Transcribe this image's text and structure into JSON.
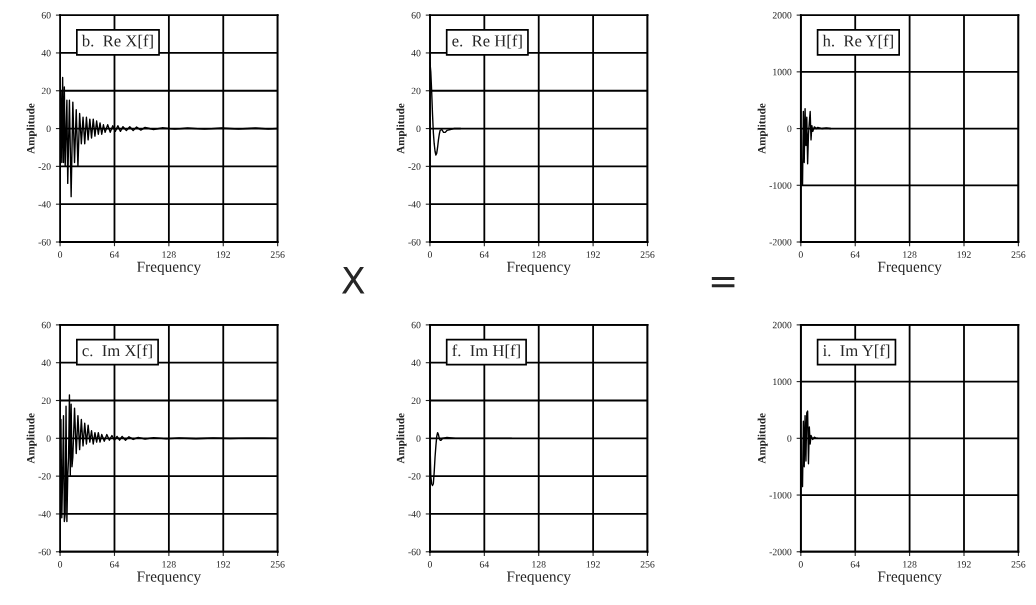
{
  "chart_data": [
    {
      "type": "line",
      "title": "b.  Re X[f]",
      "xlabel": "Frequency",
      "ylabel": "Amplitude",
      "xlim": [
        0,
        256
      ],
      "xticks": [
        0,
        64,
        128,
        192,
        256
      ],
      "ylim": [
        -60,
        60
      ],
      "yticks": [
        -60,
        -40,
        -20,
        0,
        20,
        40,
        60
      ],
      "grid": true,
      "annotations": [
        "X"
      ],
      "series": [
        {
          "color": "#000000",
          "x": [
            0,
            1,
            2,
            3,
            4,
            5,
            6,
            8,
            9,
            11,
            13,
            15,
            17,
            19,
            21,
            23,
            25,
            27,
            29,
            31,
            33,
            35,
            37,
            39,
            41,
            43,
            45,
            47,
            49,
            51,
            53,
            56,
            59,
            62,
            65,
            68,
            71,
            74,
            78,
            82,
            86,
            90,
            95,
            100,
            110,
            120,
            135,
            150,
            170,
            190,
            210,
            230,
            245,
            255
          ],
          "values": [
            0,
            20,
            -18,
            27,
            -18,
            22,
            -20,
            15,
            -29,
            15,
            -36,
            14,
            -18,
            10,
            -20,
            8,
            -8,
            6,
            -8,
            6,
            -6,
            5,
            -5,
            5,
            -4,
            4,
            -3,
            3,
            -3,
            2,
            -2,
            2,
            -2,
            1.5,
            -1.5,
            1.5,
            -1.5,
            1,
            -1,
            1,
            -1,
            0.8,
            -0.8,
            0.6,
            -0.5,
            0.4,
            -0.3,
            0.3,
            -0.3,
            0.3,
            -0.2,
            0.3,
            -0.2,
            0
          ]
        }
      ]
    },
    {
      "type": "line",
      "title": "e.  Re H[f]",
      "xlabel": "Frequency",
      "ylabel": "Amplitude",
      "xlim": [
        0,
        256
      ],
      "xticks": [
        0,
        64,
        128,
        192,
        256
      ],
      "ylim": [
        -60,
        60
      ],
      "yticks": [
        -60,
        -40,
        -20,
        0,
        20,
        40,
        60
      ],
      "grid": true,
      "annotations": [
        "="
      ],
      "series": [
        {
          "color": "#000000",
          "x": [
            0,
            1,
            2,
            3,
            4,
            5,
            6,
            7,
            8,
            9,
            10,
            11,
            12,
            14,
            16,
            18,
            20,
            24,
            28,
            32,
            36
          ],
          "values": [
            35,
            30,
            20,
            8,
            -2,
            -8,
            -12,
            -14,
            -13,
            -10,
            -6,
            -3,
            -1,
            -0.5,
            -2,
            -2,
            -1,
            -0.5,
            0,
            0,
            0
          ]
        }
      ]
    },
    {
      "type": "line",
      "title": "h.  Re Y[f]",
      "xlabel": "Frequency",
      "ylabel": "Amplitude",
      "xlim": [
        0,
        256
      ],
      "xticks": [
        0,
        64,
        128,
        192,
        256
      ],
      "ylim": [
        -2000,
        2000
      ],
      "yticks": [
        -2000,
        -1000,
        0,
        1000,
        2000
      ],
      "grid": true,
      "series": [
        {
          "color": "#000000",
          "x": [
            0,
            1,
            2,
            3,
            4,
            5,
            6,
            7,
            8,
            9,
            10,
            11,
            12,
            13,
            14,
            16,
            18,
            20,
            25,
            30,
            35
          ],
          "values": [
            0,
            -900,
            -1000,
            300,
            -600,
            350,
            -300,
            200,
            -620,
            -100,
            100,
            300,
            -200,
            50,
            -50,
            30,
            0,
            20,
            0,
            10,
            0
          ]
        }
      ]
    },
    {
      "type": "line",
      "title": "c.  Im X[f]",
      "xlabel": "Frequency",
      "ylabel": "Amplitude",
      "xlim": [
        0,
        256
      ],
      "xticks": [
        0,
        64,
        128,
        192,
        256
      ],
      "ylim": [
        -60,
        60
      ],
      "yticks": [
        -60,
        -40,
        -20,
        0,
        20,
        40,
        60
      ],
      "grid": true,
      "series": [
        {
          "color": "#000000",
          "x": [
            0,
            1,
            2,
            3,
            4,
            5,
            6,
            7,
            8,
            9,
            10,
            11,
            12,
            13,
            14,
            15,
            17,
            19,
            21,
            23,
            25,
            27,
            29,
            31,
            33,
            35,
            37,
            39,
            41,
            43,
            45,
            47,
            49,
            52,
            55,
            58,
            61,
            64,
            67,
            70,
            73,
            77,
            81,
            86,
            92,
            100,
            110,
            125,
            140,
            160,
            180,
            200,
            220,
            240,
            255
          ],
          "values": [
            0,
            10,
            -42,
            -20,
            12,
            -44,
            -40,
            17,
            -44,
            -20,
            -10,
            23,
            -20,
            18,
            -15,
            -10,
            16,
            -8,
            12,
            -6,
            10,
            -4,
            8,
            -3,
            7,
            -2,
            4,
            -3,
            3,
            -2,
            3,
            -2,
            2,
            -1.5,
            2,
            -1,
            1.5,
            -1,
            1,
            -1,
            1,
            -1,
            0.8,
            -0.6,
            0.5,
            -0.4,
            0.4,
            -0.3,
            0.2,
            -0.2,
            0.2,
            -0.1,
            0.1,
            0.1,
            0
          ]
        }
      ]
    },
    {
      "type": "line",
      "title": "f.  Im H[f]",
      "xlabel": "Frequency",
      "ylabel": "Amplitude",
      "xlim": [
        0,
        256
      ],
      "xticks": [
        0,
        64,
        128,
        192,
        256
      ],
      "ylim": [
        -60,
        60
      ],
      "yticks": [
        -60,
        -40,
        -20,
        0,
        20,
        40,
        60
      ],
      "grid": true,
      "series": [
        {
          "color": "#000000",
          "x": [
            0,
            1,
            2,
            3,
            4,
            5,
            6,
            7,
            8,
            9,
            10,
            11,
            12,
            13,
            15,
            20,
            30,
            40,
            60,
            80,
            96
          ],
          "values": [
            0,
            -20,
            -24,
            -25,
            -24,
            -18,
            -10,
            -4,
            1,
            3,
            2,
            0,
            -1,
            -1,
            0,
            0.5,
            0,
            0,
            0,
            0,
            0
          ]
        }
      ]
    },
    {
      "type": "line",
      "title": "i.  Im Y[f]",
      "xlabel": "Frequency",
      "ylabel": "Amplitude",
      "xlim": [
        0,
        256
      ],
      "xticks": [
        0,
        64,
        128,
        192,
        256
      ],
      "ylim": [
        -2000,
        2000
      ],
      "yticks": [
        -2000,
        -1000,
        0,
        1000,
        2000
      ],
      "grid": true,
      "series": [
        {
          "color": "#000000",
          "x": [
            0,
            1,
            2,
            3,
            4,
            5,
            6,
            7,
            8,
            9,
            10,
            11,
            12,
            14,
            16,
            18,
            20
          ],
          "values": [
            0,
            -800,
            -850,
            300,
            -500,
            400,
            -400,
            450,
            480,
            -450,
            200,
            -100,
            50,
            -20,
            20,
            0,
            0
          ]
        }
      ]
    }
  ]
}
